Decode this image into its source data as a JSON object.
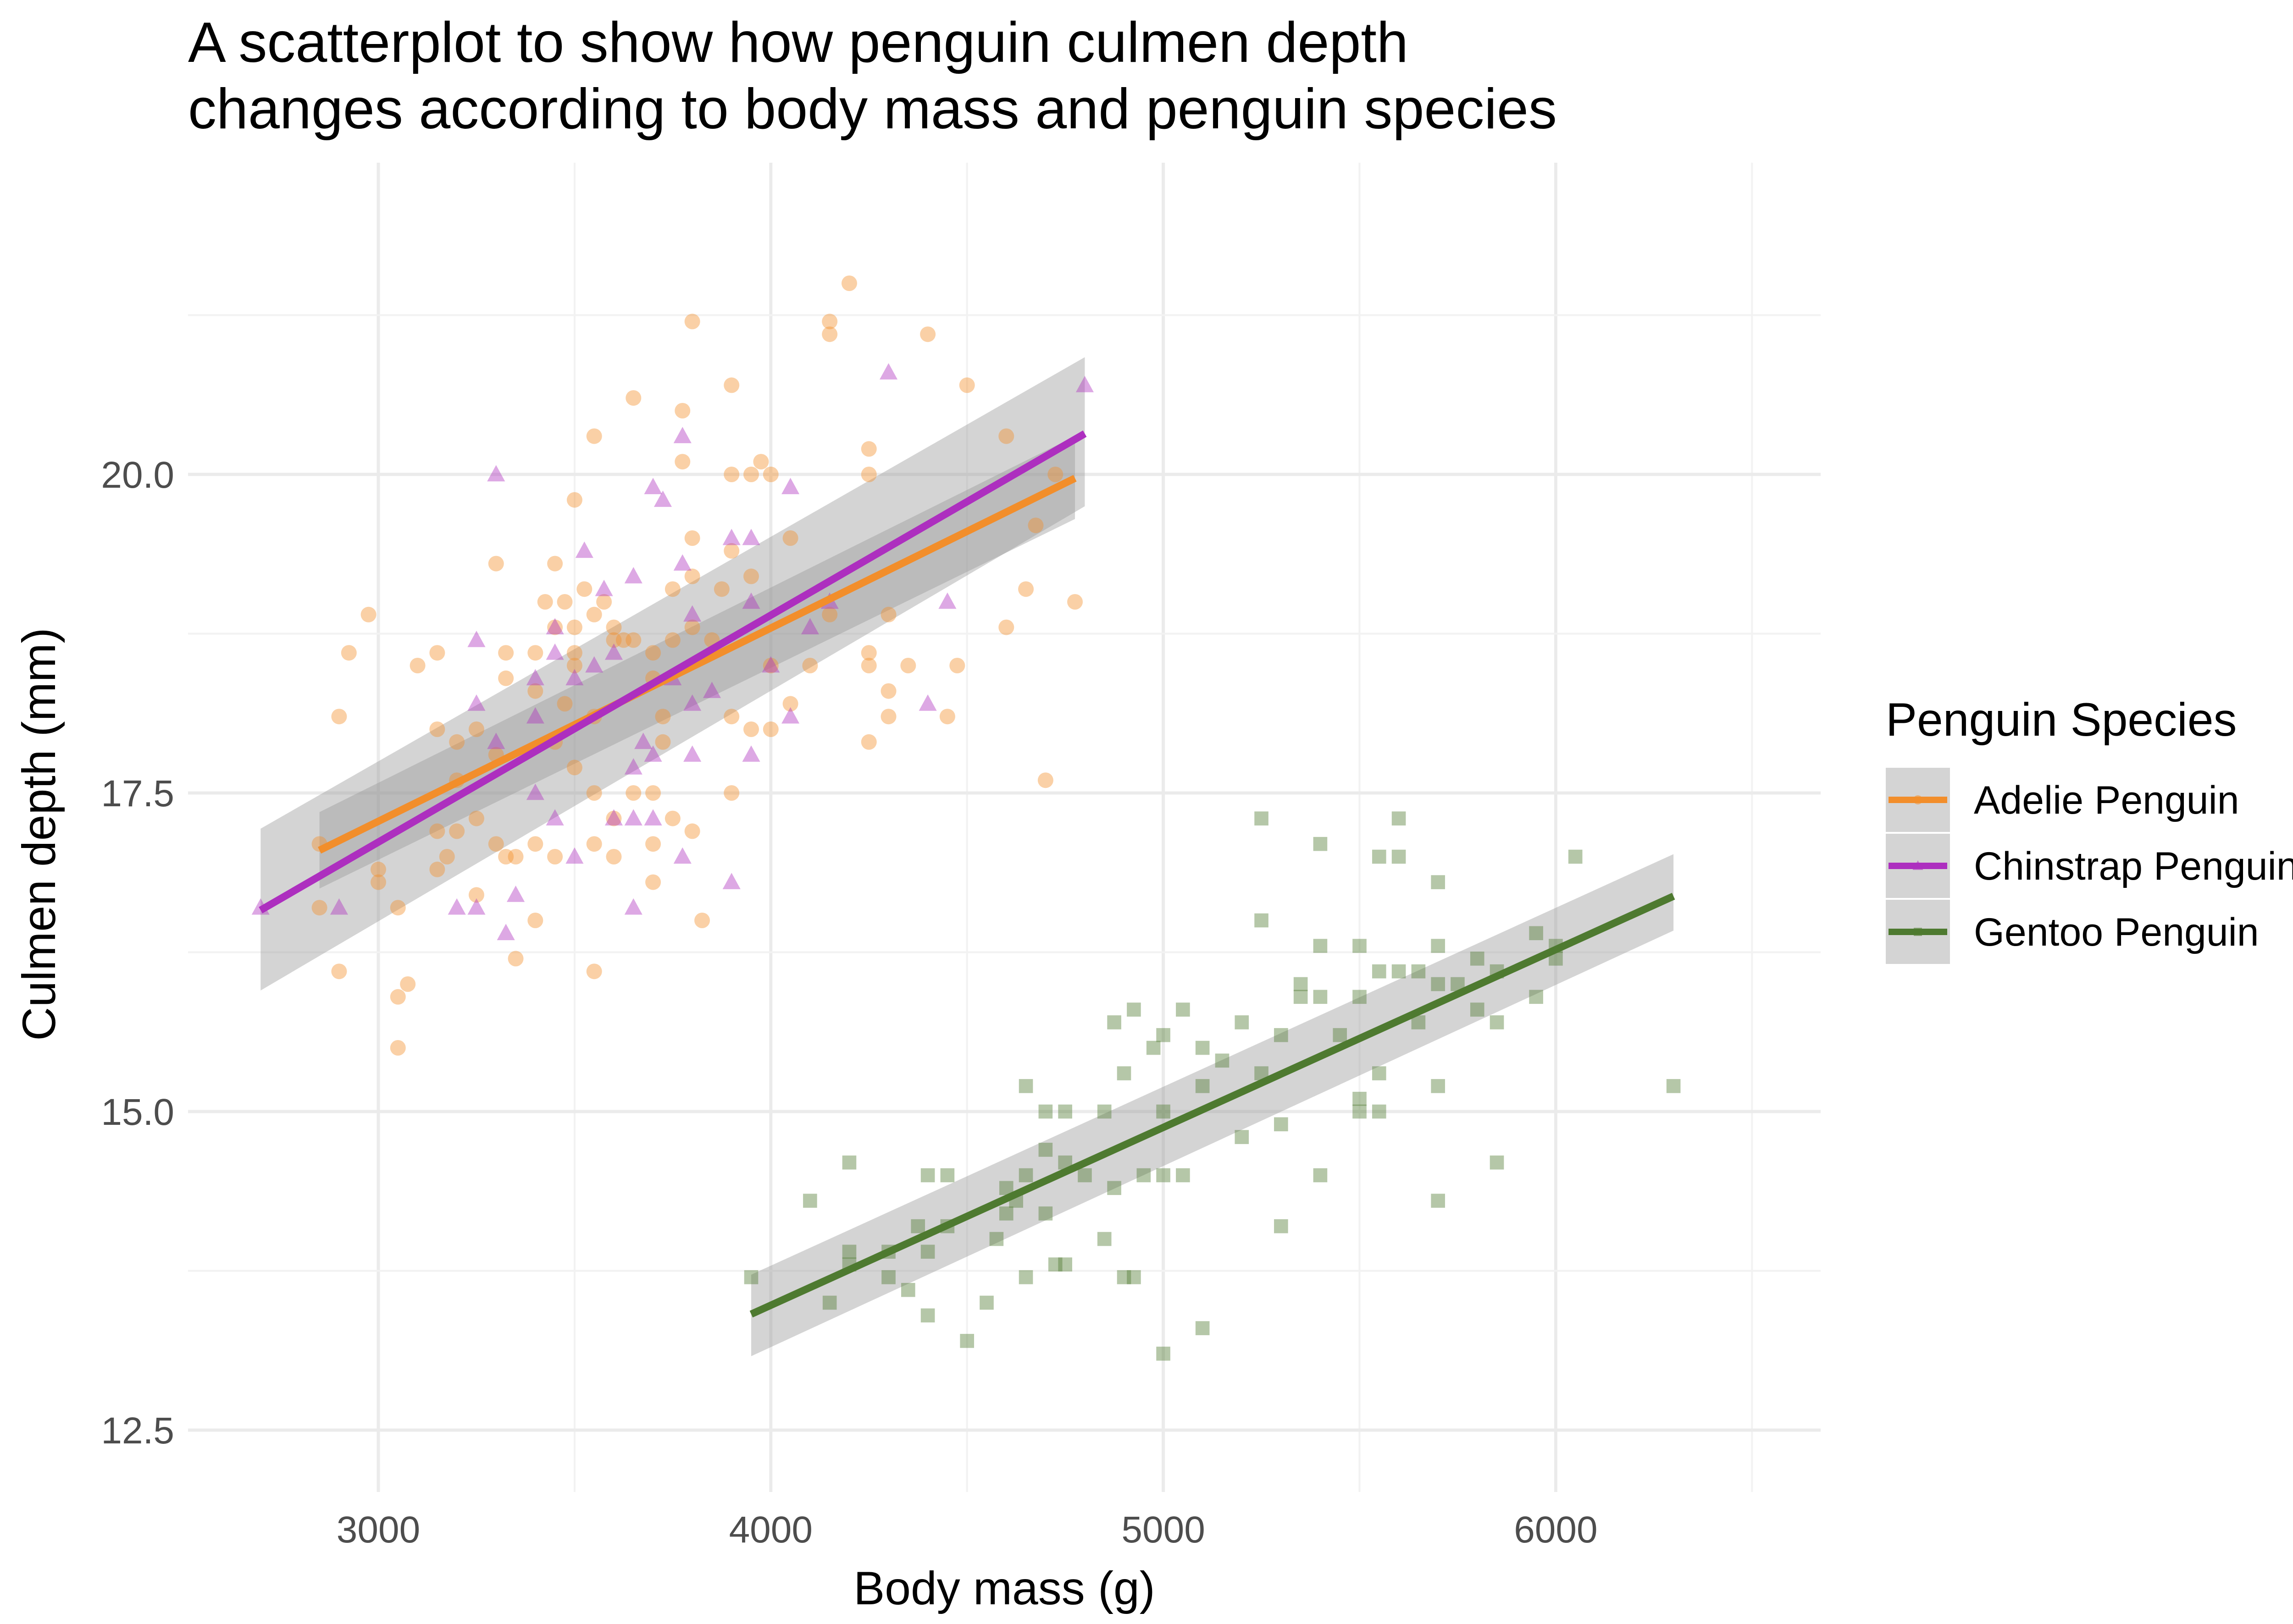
{
  "chart_data": {
    "type": "scatter",
    "title": "A scatterplot to show how penguin culmen depth changes according to body mass and penguin species",
    "title_lines": [
      "A scatterplot to show how penguin culmen depth",
      "changes according to body mass and penguin species"
    ],
    "xlabel": "Body mass (g)",
    "ylabel": "Culmen depth (mm)",
    "xlim": [
      2550,
      6450
    ],
    "ylim": [
      12.5,
      21.7
    ],
    "x_ticks": [
      3000,
      4000,
      5000,
      6000
    ],
    "x_tick_labels": [
      "3000",
      "4000",
      "5000",
      "6000"
    ],
    "y_ticks": [
      12.5,
      15.0,
      17.5,
      20.0
    ],
    "y_tick_labels": [
      "12.5",
      "15.0",
      "17.5",
      "20.0"
    ],
    "grid": true,
    "legend": {
      "title": "Penguin Species",
      "placement": "right",
      "entries": [
        "Adelie Penguin",
        "Chinstrap Penguin",
        "Gentoo Penguin"
      ]
    },
    "series": [
      {
        "name": "Adelie Penguin",
        "color": "#f28e2b",
        "marker": "circle",
        "trend": {
          "x": [
            2850,
            4775
          ],
          "y": [
            17.05,
            19.97
          ],
          "ci_lower": [
            16.75,
            19.65
          ],
          "ci_upper": [
            17.35,
            20.3
          ]
        },
        "points": [
          [
            2850,
            17.1
          ],
          [
            2850,
            16.6
          ],
          [
            2900,
            18.1
          ],
          [
            2900,
            16.1
          ],
          [
            2925,
            18.6
          ],
          [
            2975,
            18.9
          ],
          [
            3000,
            16.9
          ],
          [
            3000,
            16.8
          ],
          [
            3050,
            15.9
          ],
          [
            3050,
            15.5
          ],
          [
            3050,
            16.6
          ],
          [
            3075,
            16.0
          ],
          [
            3100,
            18.5
          ],
          [
            3150,
            18.6
          ],
          [
            3150,
            18.0
          ],
          [
            3150,
            17.2
          ],
          [
            3150,
            16.9
          ],
          [
            3175,
            17.0
          ],
          [
            3200,
            17.9
          ],
          [
            3200,
            17.2
          ],
          [
            3200,
            17.6
          ],
          [
            3250,
            18.0
          ],
          [
            3250,
            17.3
          ],
          [
            3250,
            16.7
          ],
          [
            3300,
            17.8
          ],
          [
            3300,
            17.1
          ],
          [
            3300,
            19.3
          ],
          [
            3325,
            18.6
          ],
          [
            3325,
            18.4
          ],
          [
            3325,
            17.0
          ],
          [
            3350,
            17.0
          ],
          [
            3350,
            16.2
          ],
          [
            3400,
            18.6
          ],
          [
            3400,
            18.3
          ],
          [
            3400,
            17.1
          ],
          [
            3400,
            16.5
          ],
          [
            3425,
            19.0
          ],
          [
            3450,
            19.3
          ],
          [
            3450,
            18.8
          ],
          [
            3450,
            17.9
          ],
          [
            3450,
            17.0
          ],
          [
            3475,
            19.0
          ],
          [
            3475,
            18.2
          ],
          [
            3500,
            19.8
          ],
          [
            3500,
            18.8
          ],
          [
            3500,
            18.6
          ],
          [
            3500,
            18.5
          ],
          [
            3500,
            17.7
          ],
          [
            3525,
            19.1
          ],
          [
            3550,
            20.3
          ],
          [
            3550,
            18.9
          ],
          [
            3550,
            18.1
          ],
          [
            3550,
            17.5
          ],
          [
            3550,
            17.1
          ],
          [
            3550,
            16.1
          ],
          [
            3575,
            19.0
          ],
          [
            3600,
            18.8
          ],
          [
            3600,
            18.7
          ],
          [
            3600,
            17.3
          ],
          [
            3600,
            17.0
          ],
          [
            3625,
            18.7
          ],
          [
            3650,
            20.6
          ],
          [
            3650,
            18.7
          ],
          [
            3650,
            17.5
          ],
          [
            3700,
            18.6
          ],
          [
            3700,
            18.4
          ],
          [
            3700,
            17.5
          ],
          [
            3700,
            17.1
          ],
          [
            3700,
            16.8
          ],
          [
            3725,
            18.1
          ],
          [
            3725,
            17.9
          ],
          [
            3750,
            19.1
          ],
          [
            3750,
            18.7
          ],
          [
            3750,
            17.3
          ],
          [
            3775,
            20.5
          ],
          [
            3775,
            20.1
          ],
          [
            3800,
            21.2
          ],
          [
            3800,
            19.5
          ],
          [
            3800,
            19.2
          ],
          [
            3800,
            18.8
          ],
          [
            3800,
            17.2
          ],
          [
            3825,
            16.5
          ],
          [
            3850,
            18.7
          ],
          [
            3875,
            19.1
          ],
          [
            3900,
            20.7
          ],
          [
            3900,
            20.0
          ],
          [
            3900,
            19.4
          ],
          [
            3900,
            18.1
          ],
          [
            3900,
            17.5
          ],
          [
            3950,
            20.0
          ],
          [
            3950,
            19.2
          ],
          [
            3950,
            18.0
          ],
          [
            3975,
            20.1
          ],
          [
            4000,
            20.0
          ],
          [
            4000,
            18.5
          ],
          [
            4000,
            18.0
          ],
          [
            4050,
            19.5
          ],
          [
            4050,
            18.2
          ],
          [
            4100,
            18.5
          ],
          [
            4150,
            21.2
          ],
          [
            4150,
            21.1
          ],
          [
            4150,
            18.9
          ],
          [
            4200,
            21.5
          ],
          [
            4250,
            20.2
          ],
          [
            4250,
            20.0
          ],
          [
            4250,
            18.6
          ],
          [
            4250,
            18.5
          ],
          [
            4250,
            17.9
          ],
          [
            4300,
            18.9
          ],
          [
            4300,
            18.3
          ],
          [
            4300,
            18.1
          ],
          [
            4350,
            18.5
          ],
          [
            4400,
            21.1
          ],
          [
            4450,
            18.1
          ],
          [
            4475,
            18.5
          ],
          [
            4500,
            20.7
          ],
          [
            4600,
            20.3
          ],
          [
            4600,
            18.8
          ],
          [
            4650,
            19.1
          ],
          [
            4675,
            19.6
          ],
          [
            4700,
            17.6
          ],
          [
            4725,
            20.0
          ],
          [
            4775,
            19.0
          ]
        ]
      },
      {
        "name": "Chinstrap Penguin",
        "color": "#ad2fbf",
        "marker": "triangle",
        "trend": {
          "x": [
            2700,
            4800
          ],
          "y": [
            16.58,
            20.32
          ],
          "ci_lower": [
            15.95,
            19.75
          ],
          "ci_upper": [
            17.22,
            20.92
          ]
        },
        "points": [
          [
            2700,
            16.6
          ],
          [
            2900,
            16.6
          ],
          [
            3200,
            16.6
          ],
          [
            3250,
            18.7
          ],
          [
            3250,
            18.2
          ],
          [
            3250,
            16.6
          ],
          [
            3300,
            20.0
          ],
          [
            3300,
            17.9
          ],
          [
            3325,
            16.4
          ],
          [
            3350,
            16.7
          ],
          [
            3400,
            18.4
          ],
          [
            3400,
            18.1
          ],
          [
            3400,
            17.5
          ],
          [
            3450,
            18.8
          ],
          [
            3450,
            18.6
          ],
          [
            3450,
            17.3
          ],
          [
            3500,
            18.4
          ],
          [
            3500,
            17.0
          ],
          [
            3525,
            19.4
          ],
          [
            3550,
            18.5
          ],
          [
            3575,
            19.1
          ],
          [
            3600,
            18.6
          ],
          [
            3600,
            17.3
          ],
          [
            3650,
            19.2
          ],
          [
            3650,
            17.7
          ],
          [
            3650,
            17.3
          ],
          [
            3650,
            16.6
          ],
          [
            3675,
            17.9
          ],
          [
            3700,
            19.9
          ],
          [
            3700,
            17.8
          ],
          [
            3700,
            17.3
          ],
          [
            3725,
            19.8
          ],
          [
            3750,
            18.4
          ],
          [
            3775,
            20.3
          ],
          [
            3775,
            19.3
          ],
          [
            3775,
            17.0
          ],
          [
            3800,
            18.9
          ],
          [
            3800,
            18.2
          ],
          [
            3800,
            17.8
          ],
          [
            3850,
            18.3
          ],
          [
            3900,
            19.5
          ],
          [
            3900,
            16.8
          ],
          [
            3950,
            19.5
          ],
          [
            3950,
            19.0
          ],
          [
            3950,
            17.8
          ],
          [
            4000,
            18.5
          ],
          [
            4050,
            19.9
          ],
          [
            4050,
            18.1
          ],
          [
            4100,
            18.8
          ],
          [
            4150,
            19.0
          ],
          [
            4300,
            20.8
          ],
          [
            4400,
            18.2
          ],
          [
            4450,
            19.0
          ],
          [
            4800,
            20.7
          ]
        ]
      },
      {
        "name": "Gentoo Penguin",
        "color": "#4e7a30",
        "marker": "square",
        "trend": {
          "x": [
            3950,
            6300
          ],
          "y": [
            13.41,
            16.69
          ],
          "ci_lower": [
            13.08,
            16.42
          ],
          "ci_upper": [
            13.72,
            17.02
          ]
        },
        "points": [
          [
            3950,
            13.7
          ],
          [
            4100,
            14.3
          ],
          [
            4150,
            13.5
          ],
          [
            4200,
            14.6
          ],
          [
            4200,
            13.9
          ],
          [
            4200,
            13.8
          ],
          [
            4300,
            13.9
          ],
          [
            4300,
            13.7
          ],
          [
            4350,
            13.6
          ],
          [
            4375,
            14.1
          ],
          [
            4400,
            14.5
          ],
          [
            4400,
            13.9
          ],
          [
            4400,
            13.4
          ],
          [
            4450,
            14.5
          ],
          [
            4450,
            14.1
          ],
          [
            4500,
            13.2
          ],
          [
            4550,
            13.5
          ],
          [
            4575,
            14.0
          ],
          [
            4600,
            14.4
          ],
          [
            4600,
            14.2
          ],
          [
            4625,
            14.3
          ],
          [
            4650,
            15.2
          ],
          [
            4650,
            14.5
          ],
          [
            4650,
            13.7
          ],
          [
            4700,
            15.0
          ],
          [
            4700,
            14.7
          ],
          [
            4700,
            14.2
          ],
          [
            4725,
            13.8
          ],
          [
            4750,
            15.0
          ],
          [
            4750,
            14.6
          ],
          [
            4750,
            13.8
          ],
          [
            4800,
            14.5
          ],
          [
            4850,
            15.0
          ],
          [
            4850,
            14.0
          ],
          [
            4875,
            15.7
          ],
          [
            4875,
            14.4
          ],
          [
            4900,
            15.3
          ],
          [
            4900,
            13.7
          ],
          [
            4925,
            15.8
          ],
          [
            4925,
            13.7
          ],
          [
            4950,
            14.5
          ],
          [
            4975,
            15.5
          ],
          [
            5000,
            15.6
          ],
          [
            5000,
            15.0
          ],
          [
            5000,
            14.5
          ],
          [
            5000,
            13.1
          ],
          [
            5050,
            15.8
          ],
          [
            5050,
            14.5
          ],
          [
            5100,
            15.5
          ],
          [
            5100,
            15.2
          ],
          [
            5100,
            13.3
          ],
          [
            5150,
            15.4
          ],
          [
            5200,
            15.7
          ],
          [
            5200,
            14.8
          ],
          [
            5250,
            17.3
          ],
          [
            5250,
            16.5
          ],
          [
            5250,
            15.3
          ],
          [
            5300,
            15.6
          ],
          [
            5300,
            14.9
          ],
          [
            5300,
            14.1
          ],
          [
            5350,
            16.0
          ],
          [
            5350,
            15.9
          ],
          [
            5400,
            17.1
          ],
          [
            5400,
            16.3
          ],
          [
            5400,
            15.9
          ],
          [
            5400,
            14.5
          ],
          [
            5450,
            15.6
          ],
          [
            5500,
            16.3
          ],
          [
            5500,
            15.9
          ],
          [
            5500,
            15.1
          ],
          [
            5500,
            15.0
          ],
          [
            5550,
            17.0
          ],
          [
            5550,
            16.1
          ],
          [
            5550,
            15.3
          ],
          [
            5550,
            15.0
          ],
          [
            5600,
            17.3
          ],
          [
            5600,
            17.0
          ],
          [
            5600,
            16.1
          ],
          [
            5650,
            16.1
          ],
          [
            5650,
            15.7
          ],
          [
            5700,
            16.8
          ],
          [
            5700,
            16.3
          ],
          [
            5700,
            16.0
          ],
          [
            5700,
            15.2
          ],
          [
            5700,
            14.3
          ],
          [
            5750,
            16.0
          ],
          [
            5800,
            16.2
          ],
          [
            5800,
            15.8
          ],
          [
            5850,
            16.1
          ],
          [
            5850,
            15.7
          ],
          [
            5850,
            14.6
          ],
          [
            5950,
            16.4
          ],
          [
            5950,
            15.9
          ],
          [
            6000,
            16.3
          ],
          [
            6000,
            16.2
          ],
          [
            6050,
            17.0
          ],
          [
            6300,
            15.2
          ]
        ]
      }
    ]
  }
}
